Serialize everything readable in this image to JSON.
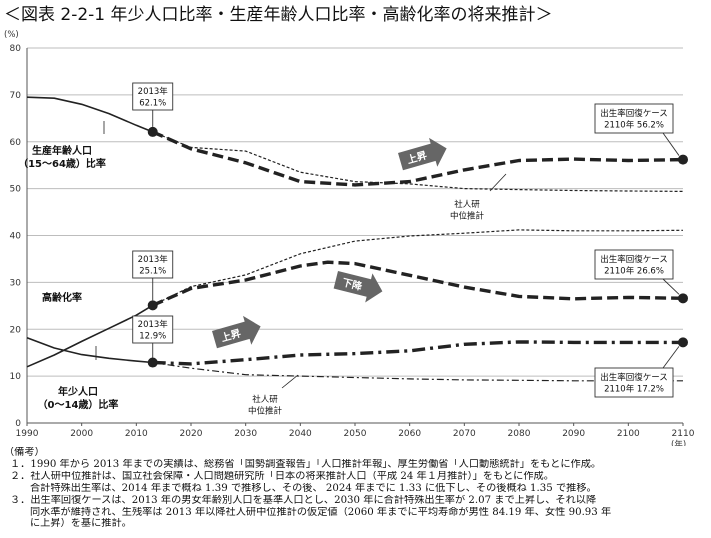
{
  "title": "＜図表 2-2-1 年少人口比率・生産年齢人口比率・高齢化率の将来推計＞",
  "chart_data": {
    "type": "line",
    "ylabel": "(%)",
    "xlabel": "(年)",
    "ylim": [
      0,
      80
    ],
    "xlim": [
      1990,
      2110
    ],
    "yticks": [
      0,
      10,
      20,
      30,
      40,
      50,
      60,
      70,
      80
    ],
    "xticks": [
      1990,
      2000,
      2010,
      2020,
      2030,
      2040,
      2050,
      2060,
      2070,
      2080,
      2090,
      2100,
      2110
    ],
    "grid": "horizontal",
    "series": [
      {
        "name": "生産年齢人口（15～64歳）比率",
        "style": "actual",
        "x": [
          1990,
          1995,
          2000,
          2005,
          2010,
          2013
        ],
        "y": [
          69.5,
          69.3,
          68.0,
          66.0,
          63.5,
          62.1
        ]
      },
      {
        "name": "生産年齢人口（15～64歳）比率 社人研中位推計",
        "style": "medium",
        "x": [
          2013,
          2020,
          2030,
          2040,
          2050,
          2060,
          2070,
          2080,
          2090,
          2100,
          2110
        ],
        "y": [
          62.1,
          58.8,
          58.0,
          53.5,
          51.5,
          51.0,
          50.0,
          49.8,
          49.6,
          49.5,
          49.4
        ]
      },
      {
        "name": "生産年齢人口（15～64歳）比率 出生率回復ケース",
        "style": "recovery",
        "x": [
          2013,
          2020,
          2030,
          2040,
          2050,
          2060,
          2070,
          2080,
          2090,
          2100,
          2110
        ],
        "y": [
          62.1,
          58.5,
          55.5,
          51.5,
          50.8,
          51.5,
          54.0,
          56.0,
          56.3,
          56.0,
          56.2
        ]
      },
      {
        "name": "高齢化率",
        "style": "actual",
        "x": [
          1990,
          1995,
          2000,
          2005,
          2010,
          2013
        ],
        "y": [
          12.0,
          14.5,
          17.4,
          20.2,
          23.0,
          25.1
        ]
      },
      {
        "name": "高齢化率 社人研中位推計",
        "style": "medium",
        "x": [
          2013,
          2020,
          2030,
          2040,
          2050,
          2060,
          2070,
          2080,
          2090,
          2100,
          2110
        ],
        "y": [
          25.1,
          29.1,
          31.6,
          36.1,
          38.8,
          39.9,
          40.5,
          41.2,
          41.0,
          41.0,
          41.1
        ]
      },
      {
        "name": "高齢化率 出生率回復ケース",
        "style": "recovery",
        "x": [
          2013,
          2020,
          2030,
          2040,
          2045,
          2050,
          2060,
          2070,
          2080,
          2090,
          2100,
          2110
        ],
        "y": [
          25.1,
          28.7,
          30.5,
          33.5,
          34.3,
          34.0,
          31.5,
          29.0,
          27.0,
          26.5,
          26.8,
          26.6
        ]
      },
      {
        "name": "年少人口（0～14歳）比率",
        "style": "actual",
        "x": [
          1990,
          1995,
          2000,
          2005,
          2010,
          2013
        ],
        "y": [
          18.2,
          16.0,
          14.6,
          13.8,
          13.2,
          12.9
        ]
      },
      {
        "name": "年少人口（0～14歳）比率 社人研中位推計",
        "style": "medium_dashdot",
        "x": [
          2013,
          2020,
          2030,
          2040,
          2050,
          2060,
          2070,
          2080,
          2090,
          2100,
          2110
        ],
        "y": [
          12.9,
          11.7,
          10.3,
          10.0,
          9.7,
          9.4,
          9.2,
          9.1,
          9.0,
          9.0,
          9.0
        ]
      },
      {
        "name": "年少人口（0～14歳）比率 出生率回復ケース",
        "style": "recovery_dashdot",
        "x": [
          2013,
          2020,
          2030,
          2040,
          2050,
          2060,
          2070,
          2080,
          2090,
          2100,
          2110
        ],
        "y": [
          12.9,
          12.6,
          13.5,
          14.5,
          14.8,
          15.4,
          16.8,
          17.3,
          17.2,
          17.2,
          17.2
        ]
      }
    ],
    "markers": [
      {
        "x": 2013,
        "y": 62.1
      },
      {
        "x": 2013,
        "y": 25.1
      },
      {
        "x": 2013,
        "y": 12.9
      },
      {
        "x": 2110,
        "y": 56.2
      },
      {
        "x": 2110,
        "y": 26.6
      },
      {
        "x": 2110,
        "y": 17.2
      }
    ],
    "series_labels": {
      "working_age": [
        "生産年齢人口",
        "（15～64歳）比率"
      ],
      "aging": [
        "高齢化率"
      ],
      "youth": [
        "年少人口",
        "（0～14歳）比率"
      ],
      "medium_upper": [
        "社人研",
        "中位推計"
      ],
      "medium_lower": [
        "社人研",
        "中位推計"
      ]
    },
    "callouts_2013": [
      [
        "2013年",
        "62.1%"
      ],
      [
        "2013年",
        "25.1%"
      ],
      [
        "2013年",
        "12.9%"
      ]
    ],
    "callouts_2110": [
      [
        "出生率回復ケース",
        "2110年 56.2%"
      ],
      [
        "出生率回復ケース",
        "2110年 26.6%"
      ],
      [
        "出生率回復ケース",
        "2110年 17.2%"
      ]
    ],
    "trend_arrows": [
      "上昇",
      "下降",
      "上昇"
    ]
  },
  "notes": {
    "header": "（備考）",
    "lines": [
      "１．1990 年から 2013 年までの実績は、総務省「国勢調査報告」「人口推計年報」、厚生労働省「人口動態統計」をもとに作成。",
      "２．社人研中位推計は、国立社会保障・人口問題研究所「日本の将来推計人口（平成 24 年１月推計）」をもとに作成。",
      "合計特殊出生率は、2014 年まで概ね 1.39 で推移し、その後、 2024 年までに 1.33 に低下し、その後概ね 1.35 で推移。",
      "３．出生率回復ケースは、2013 年の男女年齢別人口を基準人口とし、2030 年に合計特殊出生率が 2.07 まで上昇し、それ以降",
      "同水準が維持され、生残率は 2013 年以降社人研中位推計の仮定値（2060 年までに平均寿命が男性 84.19 年、女性 90.93 年",
      "に上昇）を基に推計。"
    ]
  }
}
